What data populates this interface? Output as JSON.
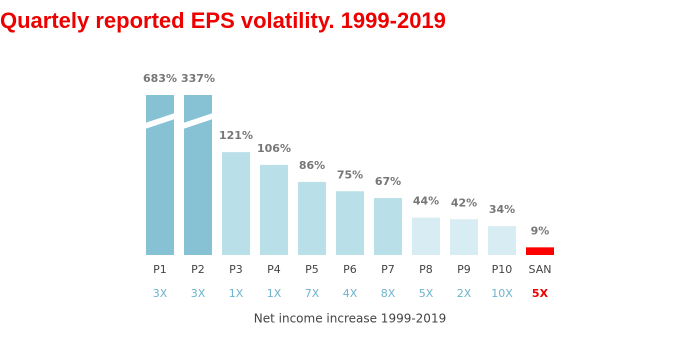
{
  "chart_data": {
    "type": "bar",
    "title": "Quartely reported EPS volatility. 1999-2019",
    "x_label": "Net income increase 1999-2019",
    "categories": [
      "P1",
      "P2",
      "P3",
      "P4",
      "P5",
      "P6",
      "P7",
      "P8",
      "P9",
      "P10",
      "SAN"
    ],
    "values": [
      683,
      337,
      121,
      106,
      86,
      75,
      67,
      44,
      42,
      34,
      9
    ],
    "value_labels": [
      "683%",
      "337%",
      "121%",
      "106%",
      "86%",
      "75%",
      "67%",
      "44%",
      "42%",
      "34%",
      "9%"
    ],
    "colors": [
      "#86c2d4",
      "#86c2d4",
      "#b9dfe8",
      "#b9dfe8",
      "#b9dfe8",
      "#b9dfe8",
      "#b9dfe8",
      "#d8edf3",
      "#d8edf3",
      "#d8edf3",
      "#ff0000"
    ],
    "sublabels": [
      "3X",
      "3X",
      "1X",
      "1X",
      "7X",
      "4X",
      "8X",
      "5X",
      "2X",
      "10X",
      "5X"
    ],
    "sublabel_colors": [
      "#6cb4cc",
      "#6cb4cc",
      "#6cb4cc",
      "#6cb4cc",
      "#6cb4cc",
      "#6cb4cc",
      "#6cb4cc",
      "#6cb4cc",
      "#6cb4cc",
      "#6cb4cc",
      "#ec0000"
    ]
  }
}
